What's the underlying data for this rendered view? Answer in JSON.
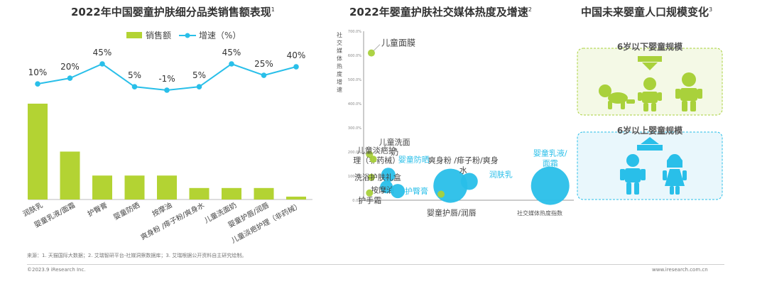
{
  "left": {
    "title": "2022年中国婴童护肤细分品类销售额表现",
    "sup": "1",
    "legend": {
      "bar": "销售额",
      "line": "增速（%）"
    },
    "chart_data": {
      "type": "bar",
      "categories": [
        "润肤乳",
        "婴童乳液/面霜",
        "护臀膏",
        "婴童防晒",
        "按摩油",
        "爽身粉 /痱子粉/爽身水",
        "儿童洗面奶",
        "婴童护唇/润唇",
        "儿童淡疤护理（非药械）"
      ],
      "series": [
        {
          "name": "销售额",
          "values": [
            100,
            50,
            25,
            25,
            25,
            12,
            12,
            12,
            3
          ]
        },
        {
          "name": "增速（%）",
          "values": [
            10,
            20,
            45,
            5,
            -1,
            5,
            45,
            25,
            40
          ]
        }
      ],
      "labels": [
        "10%",
        "20%",
        "45%",
        "5%",
        "-1%",
        "5%",
        "45%",
        "25%",
        "40%"
      ],
      "colors": {
        "bar": "#b3d333",
        "line": "#29bfe9"
      }
    }
  },
  "middle": {
    "title": "2022年婴童护肤社交媒体热度及增速",
    "sup": "2",
    "ylabel": "社交媒体热度增速",
    "xlabel": "社交媒体热度指数",
    "chart_data": {
      "type": "scatter",
      "yticks": [
        "0.0%",
        "100.0%",
        "200.0%",
        "300.0%",
        "400.0%",
        "500.0%",
        "600.0%",
        "700.0%"
      ],
      "ylim": [
        0,
        700
      ],
      "points": [
        {
          "name": "儿童面膜",
          "x": 3,
          "y": 610,
          "size": 5,
          "color": "#a9d13b"
        },
        {
          "name": "儿童淡疤护理（非药械）",
          "x": 2,
          "y": 190,
          "size": 5,
          "color": "#a9d13b"
        },
        {
          "name": "儿童洗面奶",
          "x": 4,
          "y": 170,
          "size": 5,
          "color": "#a9d13b"
        },
        {
          "name": "婴童防晒",
          "x": 12,
          "y": 105,
          "size": 10,
          "color": "#29bfe9"
        },
        {
          "name": "洗浴护肤礼盒",
          "x": 3,
          "y": 95,
          "size": 5,
          "color": "#a9d13b"
        },
        {
          "name": "按摩油",
          "x": 11,
          "y": 55,
          "size": 9,
          "color": "#29bfe9"
        },
        {
          "name": "护臀膏",
          "x": 17,
          "y": 38,
          "size": 10,
          "color": "#29bfe9"
        },
        {
          "name": "护手霜",
          "x": 2,
          "y": 30,
          "size": 5,
          "color": "#a9d13b"
        },
        {
          "name": "爽身粉 /痱子粉/爽身水",
          "x": 45,
          "y": 60,
          "size": 24,
          "color": "#29bfe9"
        },
        {
          "name": "润肤乳",
          "x": 55,
          "y": 78,
          "size": 12,
          "color": "#29bfe9"
        },
        {
          "name": "婴童护唇/润唇",
          "x": 40,
          "y": 25,
          "size": 5,
          "color": "#a9d13b"
        },
        {
          "name": "婴童乳液/面霜",
          "x": 98,
          "y": 60,
          "size": 27,
          "color": "#29bfe9"
        }
      ]
    }
  },
  "right": {
    "title": "中国未来婴童人口规模变化",
    "sup": "3",
    "box1_label": "6岁以下婴童规模",
    "box2_label": "6岁以上婴童规模",
    "colors": {
      "green": "#a9d13b",
      "blue": "#29bfe9"
    }
  },
  "footer": {
    "source": "来源：1. 天猫国际大数据；2. 艾瑞智研平台-社媒洞察数据库；3. 艾瑞根据公开资料自主研究绘制。",
    "copyright": "©2023.9 iResearch Inc.",
    "site": "www.iresearch.com.cn"
  }
}
